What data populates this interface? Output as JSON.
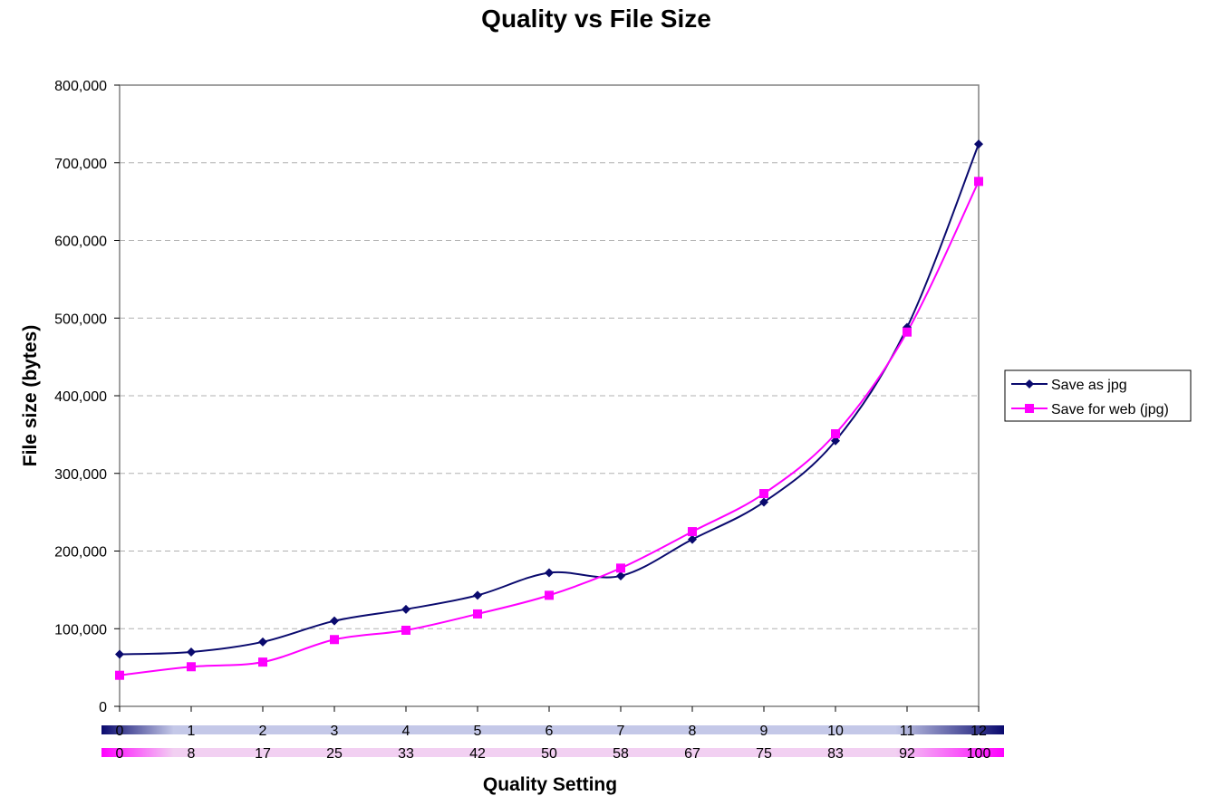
{
  "chart_data": {
    "type": "line",
    "title": "Quality vs File Size",
    "xlabel": "Quality Setting",
    "ylabel": "File size (bytes)",
    "ylim": [
      0,
      800000
    ],
    "y_ticks": [
      "0",
      "100,000",
      "200,000",
      "300,000",
      "400,000",
      "500,000",
      "600,000",
      "700,000",
      "800,000"
    ],
    "x": [
      0,
      1,
      2,
      3,
      4,
      5,
      6,
      7,
      8,
      9,
      10,
      11,
      12
    ],
    "x_axes": [
      {
        "name": "Save as jpg",
        "tick_labels": [
          "0",
          "1",
          "2",
          "3",
          "4",
          "5",
          "6",
          "7",
          "8",
          "9",
          "10",
          "11",
          "12"
        ],
        "color": "#0a0a6e"
      },
      {
        "name": "Save for web (jpg)",
        "tick_labels": [
          "0",
          "8",
          "17",
          "25",
          "33",
          "42",
          "50",
          "58",
          "67",
          "75",
          "83",
          "92",
          "100"
        ],
        "color": "#ff00ff"
      }
    ],
    "series": [
      {
        "name": "Save as jpg",
        "color": "#0a0a6e",
        "marker": "diamond",
        "values": [
          67000,
          70000,
          83000,
          110000,
          125000,
          143000,
          172000,
          168000,
          215000,
          263000,
          342000,
          488000,
          724000
        ]
      },
      {
        "name": "Save for web (jpg)",
        "color": "#ff00ff",
        "marker": "square",
        "values": [
          40000,
          51000,
          57000,
          86000,
          98000,
          119000,
          143000,
          178000,
          225000,
          274000,
          351000,
          482000,
          676000
        ]
      }
    ],
    "grid": "horizontal dashed",
    "legend_position": "right"
  }
}
